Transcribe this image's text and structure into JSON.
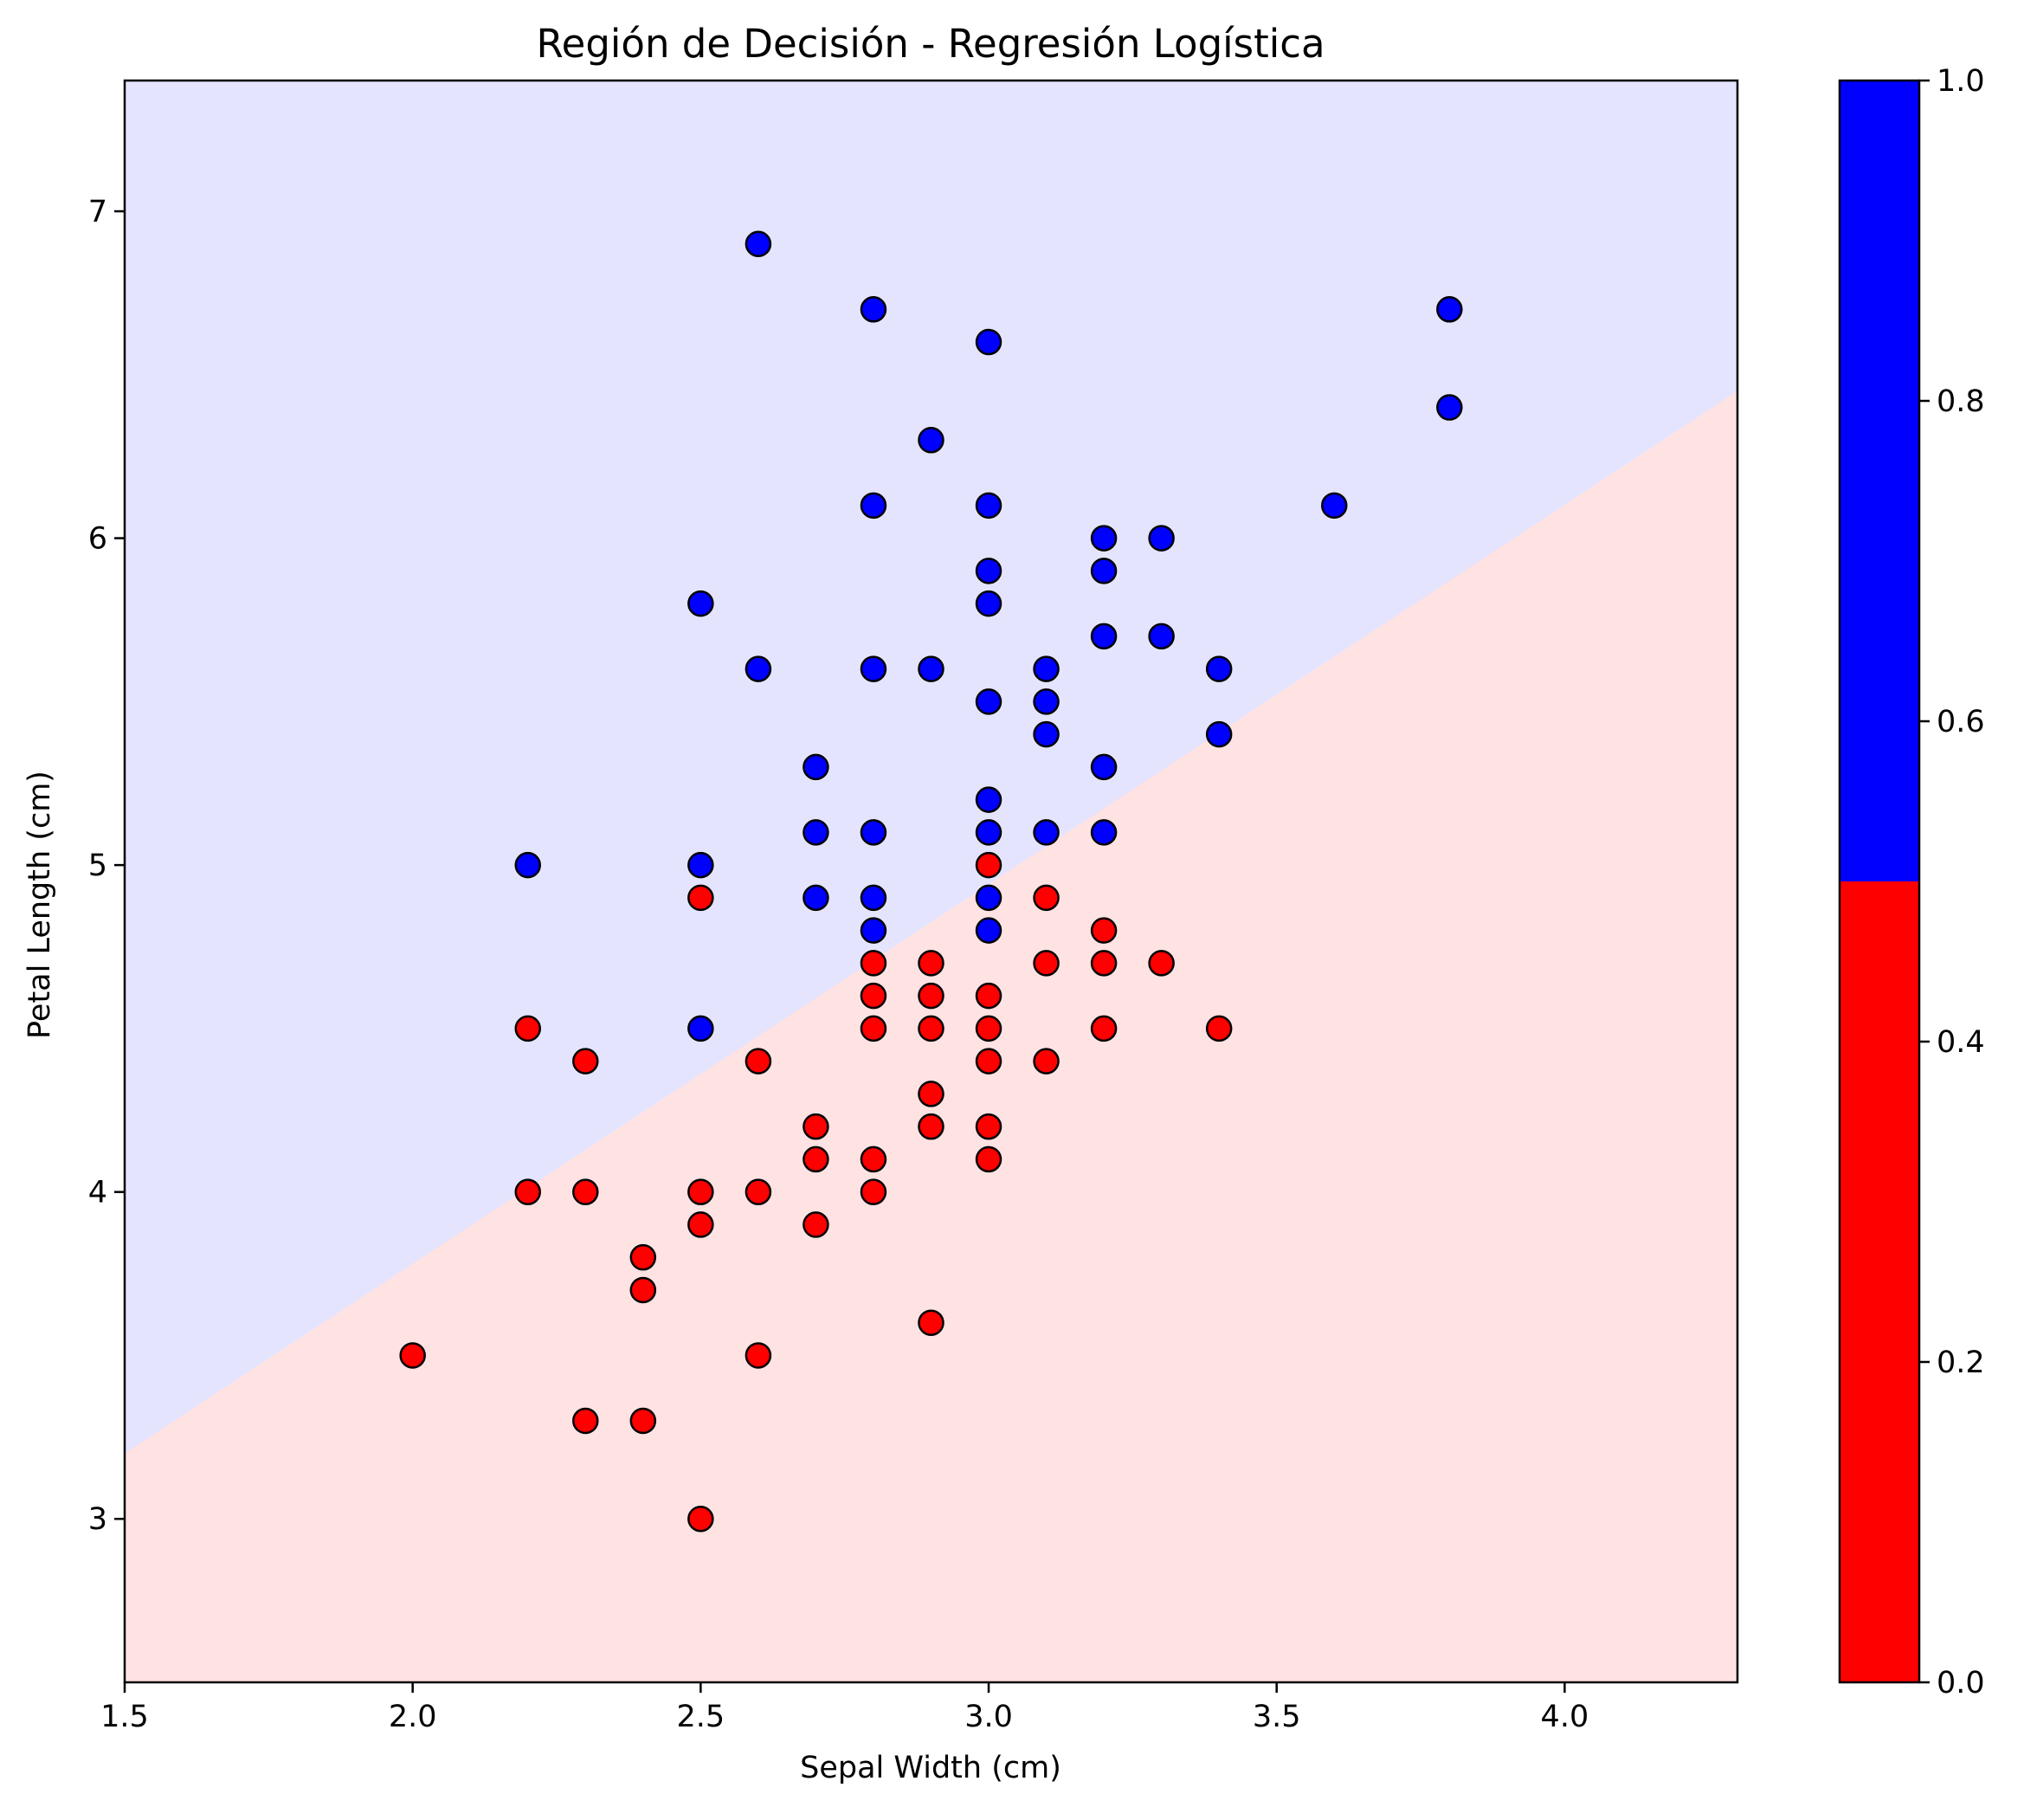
{
  "chart_data": {
    "type": "scatter",
    "title": "Región de Decisión - Regresión Logística",
    "xlabel": "Sepal Width (cm)",
    "ylabel": "Petal Length (cm)",
    "xlim": [
      1.5,
      4.3
    ],
    "ylim": [
      2.5,
      7.4
    ],
    "xticks": [
      "1.5",
      "2.0",
      "2.5",
      "3.0",
      "3.5",
      "4.0"
    ],
    "yticks": [
      "3",
      "4",
      "5",
      "6",
      "7"
    ],
    "grid": false,
    "decision_boundary": {
      "points": [
        [
          1.5,
          3.2
        ],
        [
          4.3,
          6.45
        ]
      ]
    },
    "region_colors": {
      "class_0": "#ffe2e2",
      "class_1": "#e4e4ff"
    },
    "series": [
      {
        "color": "#ff0000",
        "points": [
          [
            2.0,
            3.5
          ],
          [
            2.2,
            4.5
          ],
          [
            2.2,
            4.0
          ],
          [
            2.3,
            4.4
          ],
          [
            2.3,
            4.0
          ],
          [
            2.3,
            3.3
          ],
          [
            2.4,
            3.8
          ],
          [
            2.4,
            3.7
          ],
          [
            2.4,
            3.3
          ],
          [
            2.5,
            4.9
          ],
          [
            2.5,
            4.0
          ],
          [
            2.5,
            3.9
          ],
          [
            2.5,
            3.0
          ],
          [
            2.6,
            4.4
          ],
          [
            2.6,
            4.0
          ],
          [
            2.6,
            3.5
          ],
          [
            2.7,
            4.2
          ],
          [
            2.7,
            4.1
          ],
          [
            2.7,
            3.9
          ],
          [
            2.8,
            4.7
          ],
          [
            2.8,
            4.6
          ],
          [
            2.8,
            4.5
          ],
          [
            2.8,
            4.1
          ],
          [
            2.8,
            4.0
          ],
          [
            2.9,
            4.7
          ],
          [
            2.9,
            4.6
          ],
          [
            2.9,
            4.5
          ],
          [
            2.9,
            4.3
          ],
          [
            2.9,
            4.2
          ],
          [
            2.9,
            3.6
          ],
          [
            3.0,
            5.0
          ],
          [
            3.0,
            4.6
          ],
          [
            3.0,
            4.5
          ],
          [
            3.0,
            4.4
          ],
          [
            3.0,
            4.2
          ],
          [
            3.0,
            4.1
          ],
          [
            3.1,
            4.9
          ],
          [
            3.1,
            4.7
          ],
          [
            3.1,
            4.4
          ],
          [
            3.2,
            4.8
          ],
          [
            3.2,
            4.7
          ],
          [
            3.2,
            4.5
          ],
          [
            3.3,
            4.7
          ],
          [
            3.4,
            4.5
          ]
        ]
      },
      {
        "color": "#0000ff",
        "points": [
          [
            2.2,
            5.0
          ],
          [
            2.5,
            5.8
          ],
          [
            2.5,
            5.0
          ],
          [
            2.5,
            4.5
          ],
          [
            2.6,
            6.9
          ],
          [
            2.6,
            5.6
          ],
          [
            2.7,
            5.3
          ],
          [
            2.7,
            5.1
          ],
          [
            2.7,
            4.9
          ],
          [
            2.8,
            6.7
          ],
          [
            2.8,
            6.1
          ],
          [
            2.8,
            5.6
          ],
          [
            2.8,
            5.1
          ],
          [
            2.8,
            4.9
          ],
          [
            2.8,
            4.8
          ],
          [
            2.9,
            6.3
          ],
          [
            2.9,
            5.6
          ],
          [
            3.0,
            6.6
          ],
          [
            3.0,
            6.1
          ],
          [
            3.0,
            5.9
          ],
          [
            3.0,
            5.8
          ],
          [
            3.0,
            5.5
          ],
          [
            3.0,
            5.2
          ],
          [
            3.0,
            5.1
          ],
          [
            3.0,
            4.9
          ],
          [
            3.0,
            4.8
          ],
          [
            3.1,
            5.6
          ],
          [
            3.1,
            5.5
          ],
          [
            3.1,
            5.4
          ],
          [
            3.1,
            5.1
          ],
          [
            3.2,
            6.0
          ],
          [
            3.2,
            5.9
          ],
          [
            3.2,
            5.7
          ],
          [
            3.2,
            5.3
          ],
          [
            3.2,
            5.1
          ],
          [
            3.3,
            6.0
          ],
          [
            3.3,
            5.7
          ],
          [
            3.4,
            5.6
          ],
          [
            3.4,
            5.4
          ],
          [
            3.6,
            6.1
          ],
          [
            3.8,
            6.7
          ],
          [
            3.8,
            6.4
          ]
        ]
      }
    ],
    "colorbar": {
      "ticks": [
        "0.0",
        "0.2",
        "0.4",
        "0.6",
        "0.8",
        "1.0"
      ],
      "range": [
        0,
        1
      ],
      "split": 0.5,
      "low_color": "#ff0000",
      "high_color": "#0000ff"
    }
  }
}
